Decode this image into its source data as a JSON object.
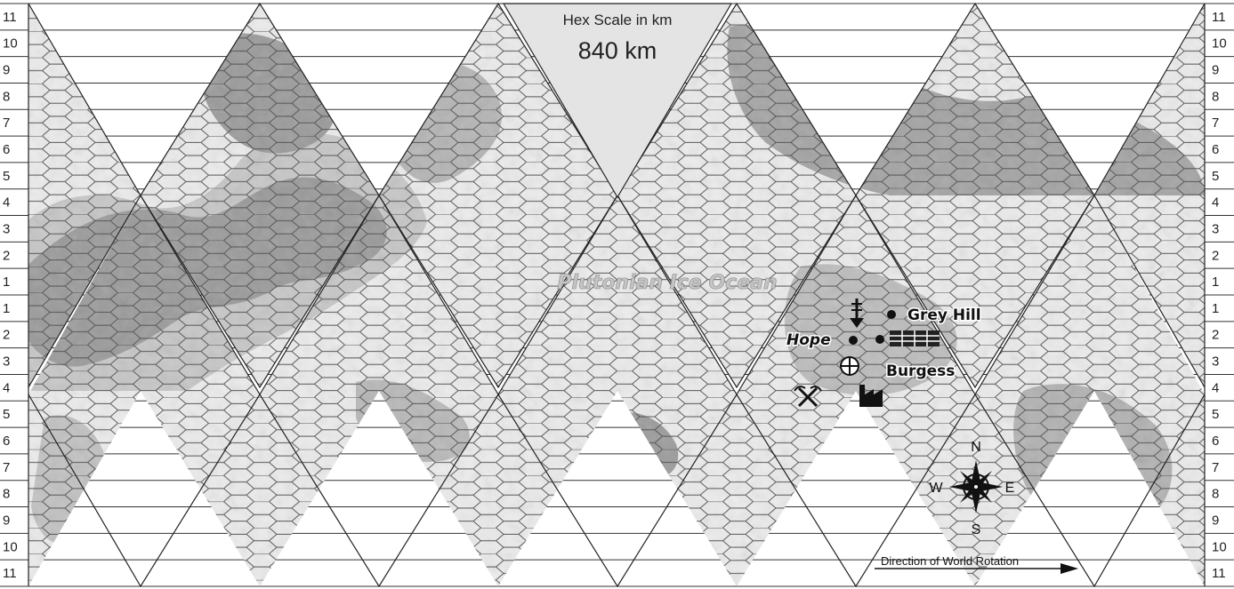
{
  "scale": {
    "title": "Hex Scale in km",
    "value": "840 km"
  },
  "ocean_label": "Plutonian Ice Ocean",
  "row_labels_left": [
    "11",
    "10",
    "9",
    "8",
    "7",
    "6",
    "5",
    "4",
    "3",
    "2",
    "1",
    "1",
    "2",
    "3",
    "4",
    "5",
    "6",
    "7",
    "8",
    "9",
    "10",
    "11"
  ],
  "row_labels_right": [
    "11",
    "10",
    "9",
    "8",
    "7",
    "6",
    "5",
    "4",
    "3",
    "2",
    "1",
    "1",
    "2",
    "3",
    "4",
    "5",
    "6",
    "7",
    "8",
    "9",
    "10",
    "11"
  ],
  "places": [
    {
      "name": "Grey Hill",
      "italic": false
    },
    {
      "name": "Hope",
      "italic": true
    },
    {
      "name": "Burgess",
      "italic": false
    }
  ],
  "compass": {
    "n": "N",
    "s": "S",
    "e": "E",
    "w": "W"
  },
  "rotation_label": "Direction of World Rotation",
  "icons": [
    "starport-icon",
    "crossed-tools-icon",
    "factory-icon",
    "dome-icon",
    "mine-shaft-icon",
    "town-dot-icon",
    "compass-rose-icon",
    "rotation-arrow-icon"
  ],
  "colors": {
    "land_dark": "#777777",
    "land_mid": "#a9a9a9",
    "land_light": "#cfcfcf",
    "ice": "#ececec",
    "scale_triangle": "#e4e4e4",
    "ocean_label": "#c4c4c4"
  }
}
